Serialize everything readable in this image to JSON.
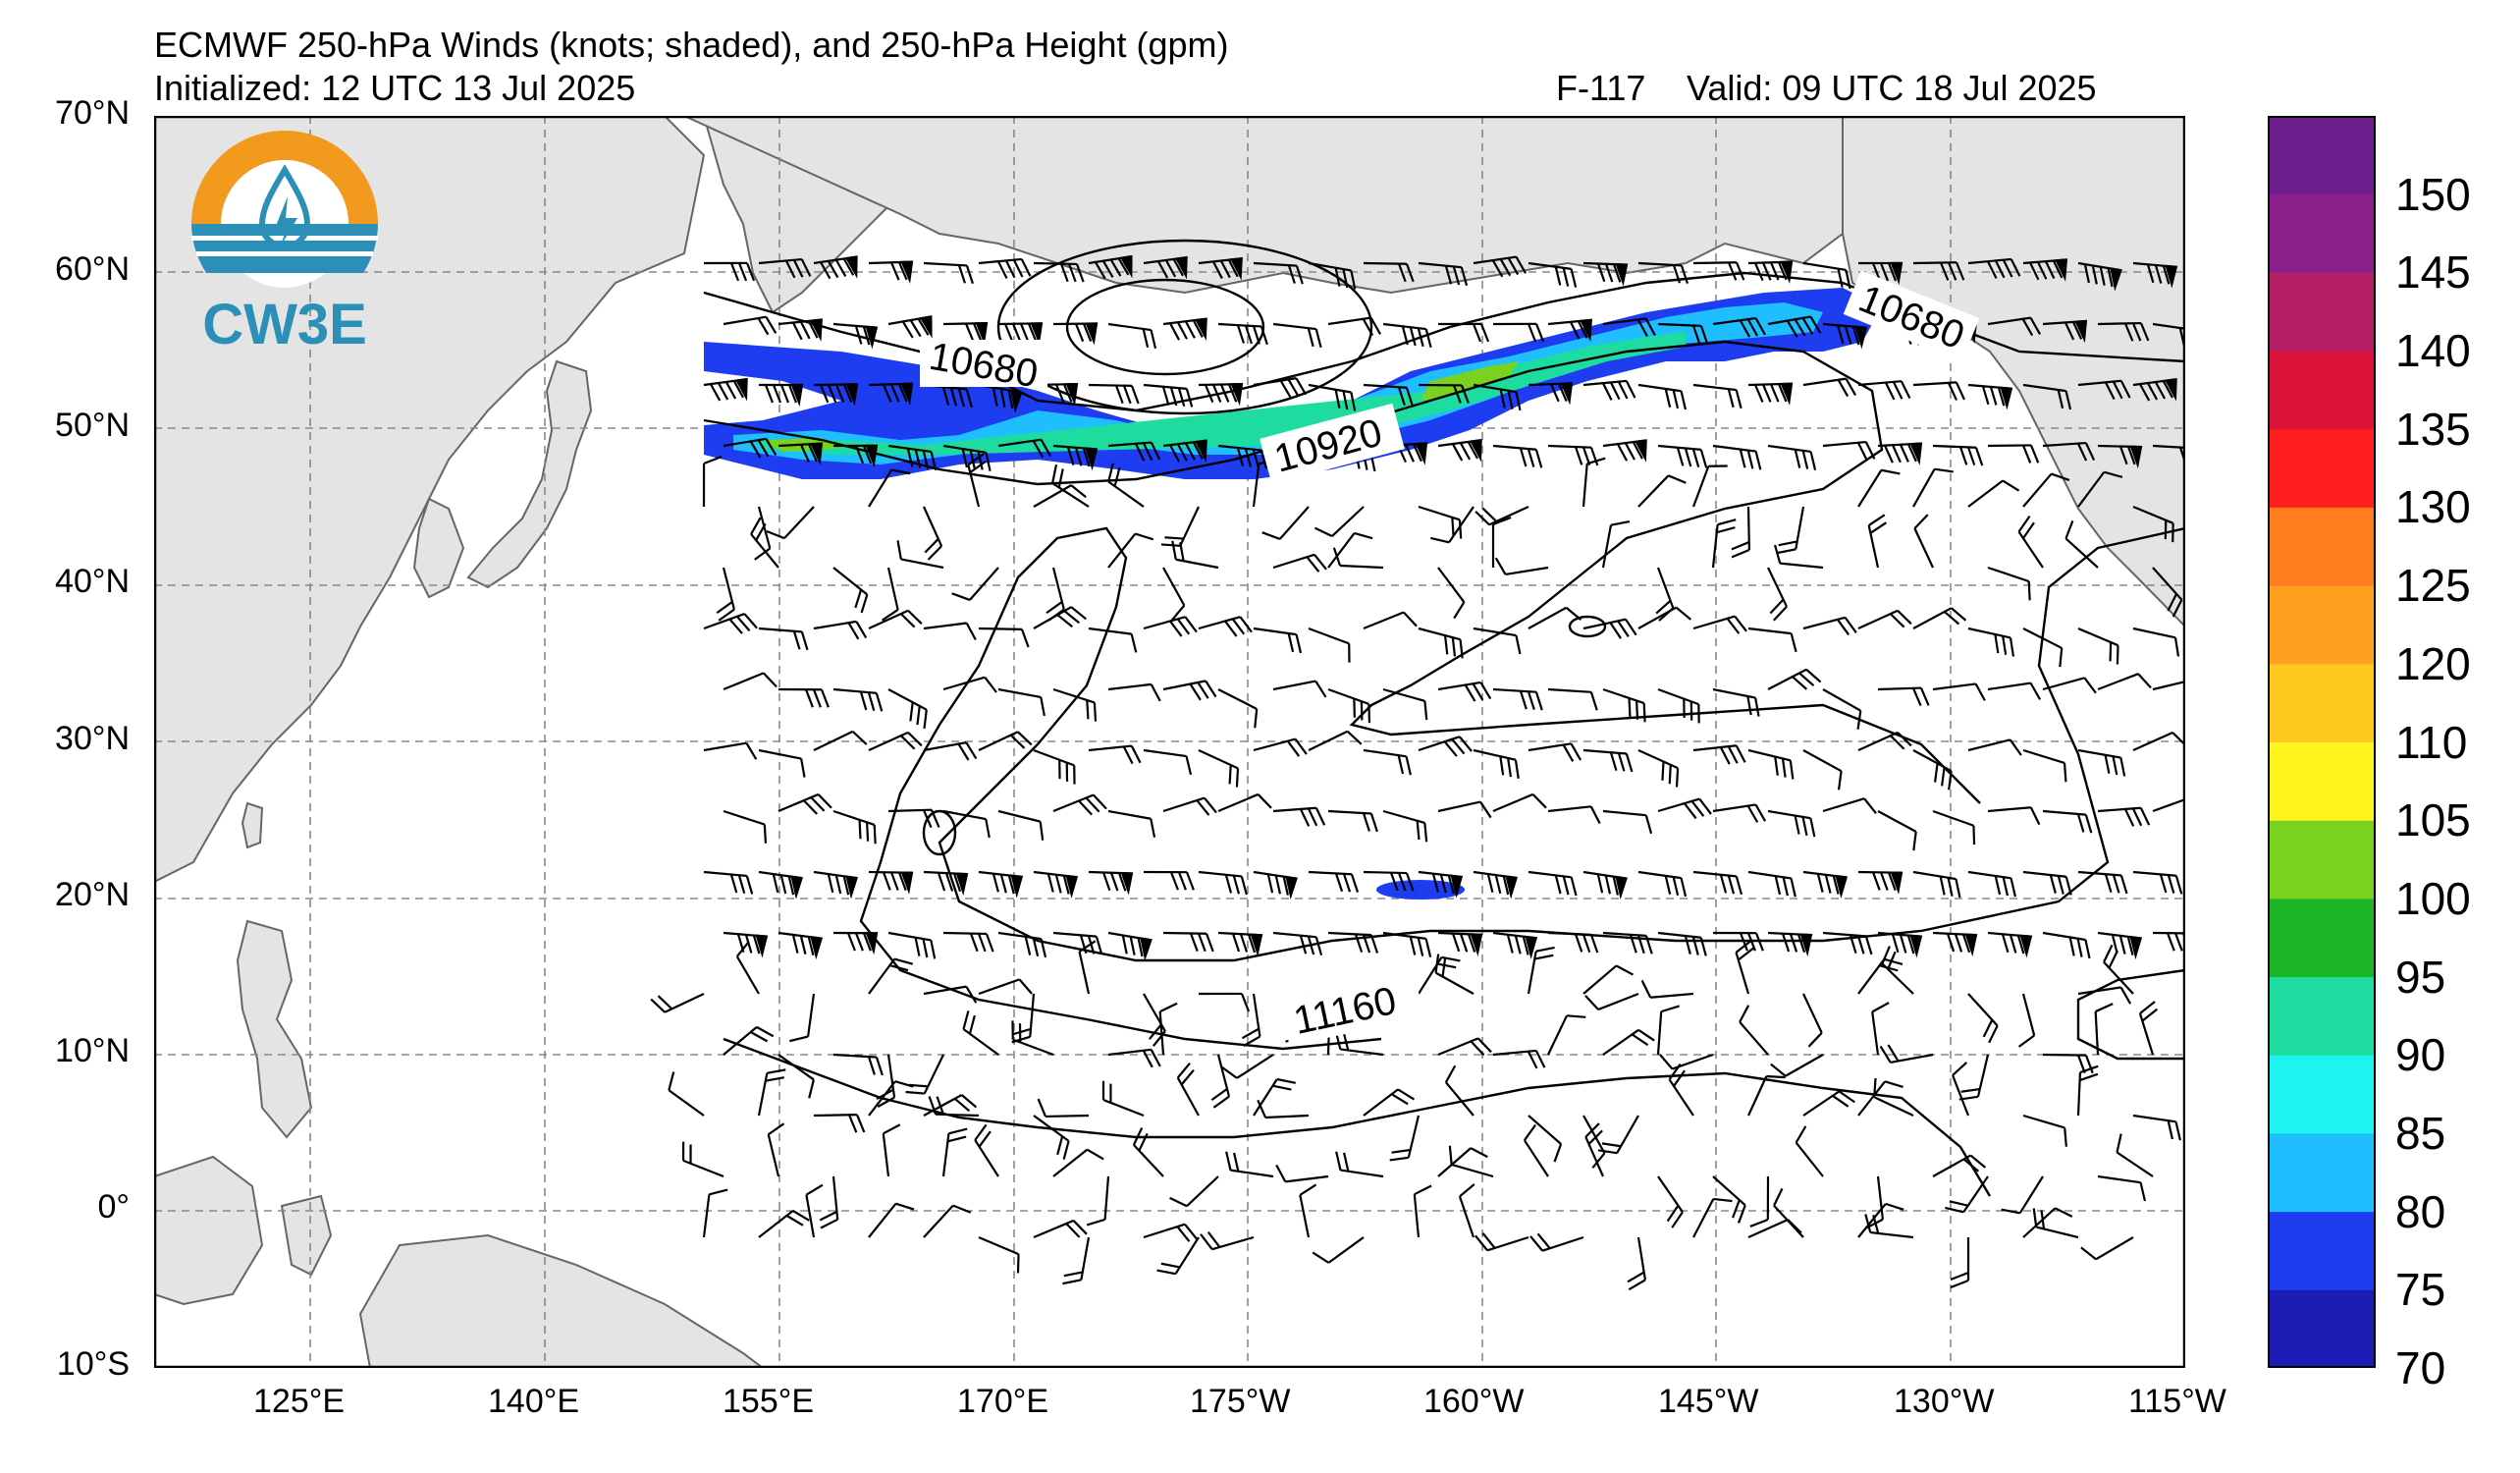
{
  "header": {
    "title": "ECMWF 250-hPa Winds (knots; shaded), and 250-hPa Height (gpm)",
    "initialized": "Initialized: 12 UTC 13 Jul 2025",
    "forecast_hour": "F-117",
    "valid": "Valid: 09 UTC 18 Jul 2025"
  },
  "logo": {
    "text": "CW3E",
    "colors": {
      "ring": "#f29a1d",
      "water": "#2b8fb8",
      "drop": "#2b8fb8"
    }
  },
  "map": {
    "lat_labels": [
      "70°N",
      "60°N",
      "50°N",
      "40°N",
      "30°N",
      "20°N",
      "10°N",
      "0°",
      "10°S"
    ],
    "lon_labels": [
      "125°E",
      "140°E",
      "155°E",
      "170°E",
      "175°W",
      "160°W",
      "145°W",
      "130°W",
      "115°W"
    ],
    "height_contour_labels": [
      "10680",
      "10680",
      "10920",
      "11160"
    ],
    "land_color": "#e4e4e4",
    "ocean_color": "#ffffff",
    "grid_style": "dashed"
  },
  "colorbar": {
    "levels": [
      70,
      75,
      80,
      85,
      90,
      95,
      100,
      105,
      110,
      120,
      125,
      130,
      135,
      140,
      145,
      150
    ],
    "tick_labels": [
      "70",
      "75",
      "80",
      "85",
      "90",
      "95",
      "100",
      "105",
      "110",
      "120",
      "125",
      "130",
      "135",
      "140",
      "145",
      "150"
    ],
    "colors": [
      "#1c1cb4",
      "#1e3cf0",
      "#1ebeff",
      "#1ef5f0",
      "#1edca0",
      "#1eb428",
      "#78d21e",
      "#fff51e",
      "#ffc81e",
      "#ffa01e",
      "#ff7d1e",
      "#ff1e1e",
      "#dc143c",
      "#b41e64",
      "#8c1e8c",
      "#6e1e8c"
    ]
  }
}
